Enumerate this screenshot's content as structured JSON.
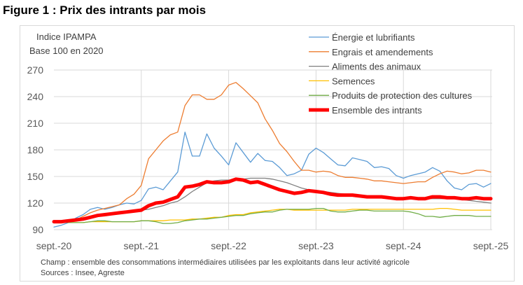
{
  "title": "Figure 1 : Prix des intrants par mois",
  "notes": {
    "champ": "Champ : ensemble des consommations intermédiaires utilisées par les exploitants dans leur activité agricole",
    "sources": "Sources : Insee, Agreste"
  },
  "chart_data": {
    "type": "line",
    "ylabel_lines": [
      "Indice IPAMPA",
      "Base 100 en 2020"
    ],
    "ylim": [
      90,
      270
    ],
    "yticks": [
      90,
      120,
      150,
      180,
      210,
      240,
      270
    ],
    "x_frequency": "monthly",
    "x_range": [
      "sept.-20",
      "sept.-25"
    ],
    "xtick_labels": [
      "sept.-20",
      "sept.-21",
      "sept.-22",
      "sept.-23",
      "sept.-24",
      "sept.-25"
    ],
    "grid": true,
    "legend_position": "top-right",
    "series": [
      {
        "name": "Énergie et lubrifiants",
        "color": "#5b9bd5",
        "width": 1.3,
        "values": [
          93,
          95,
          98,
          103,
          107,
          113,
          115,
          113,
          115,
          118,
          120,
          119,
          123,
          136,
          138,
          135,
          145,
          155,
          200,
          173,
          173,
          198,
          182,
          173,
          163,
          188,
          177,
          166,
          176,
          168,
          167,
          160,
          151,
          153,
          157,
          175,
          182,
          177,
          170,
          163,
          162,
          171,
          169,
          167,
          160,
          161,
          159,
          151,
          148,
          151,
          153,
          155,
          160,
          156,
          145,
          137,
          135,
          141,
          142,
          138,
          142
        ]
      },
      {
        "name": "Engrais et amendements",
        "color": "#ed7d31",
        "width": 1.3,
        "values": [
          98,
          98,
          99,
          101,
          105,
          109,
          112,
          114,
          116,
          118,
          125,
          130,
          140,
          170,
          180,
          190,
          197,
          200,
          230,
          242,
          242,
          237,
          237,
          242,
          253,
          256,
          249,
          241,
          233,
          215,
          202,
          187,
          178,
          167,
          157,
          157,
          155,
          156,
          155,
          151,
          149,
          149,
          148,
          147,
          145,
          145,
          144,
          143,
          142,
          143,
          144,
          144,
          149,
          153,
          156,
          155,
          153,
          154,
          157,
          157,
          155
        ]
      },
      {
        "name": "Aliments des animaux",
        "color": "#7f7f7f",
        "width": 1.3,
        "values": [
          99,
          99,
          100,
          101,
          102,
          104,
          106,
          108,
          109,
          110,
          111,
          111,
          112,
          113,
          115,
          117,
          120,
          122,
          127,
          133,
          138,
          143,
          145,
          146,
          146,
          147,
          147,
          148,
          148,
          148,
          147,
          145,
          143,
          140,
          137,
          135,
          134,
          133,
          132,
          131,
          130,
          129,
          128,
          127,
          127,
          126,
          126,
          126,
          126,
          125,
          125,
          125,
          125,
          125,
          125,
          125,
          124,
          123,
          122,
          121,
          120
        ]
      },
      {
        "name": "Semences",
        "color": "#ffc000",
        "width": 1.3,
        "values": [
          99,
          99,
          98,
          98,
          98,
          99,
          99,
          99,
          99,
          99,
          99,
          99,
          100,
          100,
          100,
          100,
          101,
          101,
          101,
          102,
          102,
          103,
          104,
          104,
          106,
          107,
          107,
          109,
          110,
          111,
          112,
          113,
          113,
          112,
          112,
          112,
          112,
          112,
          112,
          112,
          112,
          113,
          113,
          113,
          113,
          113,
          113,
          113,
          113,
          113,
          113,
          113,
          113,
          114,
          114,
          113,
          112,
          112,
          112,
          112,
          112
        ]
      },
      {
        "name": "Produits de protection des cultures",
        "color": "#70ad47",
        "width": 1.3,
        "values": [
          99,
          99,
          98,
          98,
          98,
          99,
          100,
          100,
          99,
          99,
          99,
          99,
          100,
          100,
          99,
          97,
          97,
          98,
          100,
          101,
          102,
          102,
          103,
          104,
          105,
          106,
          106,
          108,
          109,
          110,
          110,
          112,
          113,
          113,
          113,
          113,
          114,
          114,
          111,
          110,
          110,
          111,
          112,
          112,
          111,
          111,
          111,
          111,
          111,
          110,
          108,
          105,
          105,
          104,
          105,
          106,
          106,
          106,
          105,
          105,
          105
        ]
      },
      {
        "name": "Ensemble des intrants",
        "color": "#ff0000",
        "width": 5,
        "values": [
          99,
          99,
          100,
          101,
          102,
          104,
          106,
          107,
          108,
          109,
          110,
          111,
          112,
          117,
          120,
          121,
          124,
          127,
          138,
          139,
          141,
          144,
          143,
          143,
          144,
          147,
          146,
          143,
          144,
          141,
          138,
          135,
          133,
          131,
          132,
          134,
          133,
          132,
          130,
          129,
          129,
          129,
          128,
          127,
          127,
          127,
          126,
          125,
          125,
          126,
          125,
          125,
          127,
          127,
          126,
          126,
          125,
          125,
          126,
          125,
          125
        ]
      }
    ]
  }
}
